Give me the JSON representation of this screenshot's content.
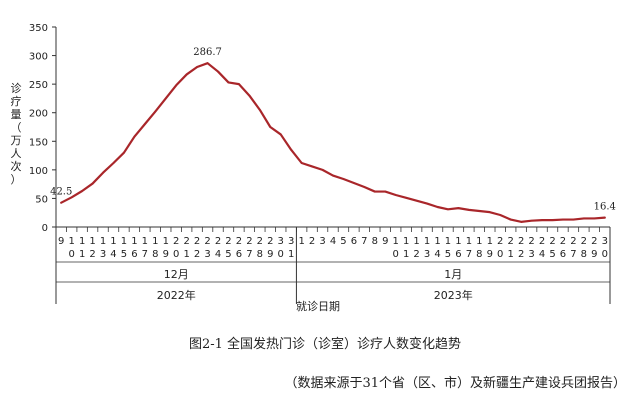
{
  "chart_data": {
    "type": "line",
    "ylabel": "诊疗量（万人次）",
    "xlabel": "就诊日期",
    "ylim": [
      0,
      350
    ],
    "yticks": [
      0,
      50,
      100,
      150,
      200,
      250,
      300,
      350
    ],
    "color": "#a9262a",
    "x": [
      "9",
      "10",
      "11",
      "12",
      "13",
      "14",
      "15",
      "16",
      "17",
      "18",
      "19",
      "20",
      "21",
      "22",
      "23",
      "24",
      "25",
      "26",
      "27",
      "28",
      "29",
      "30",
      "31",
      "1",
      "2",
      "3",
      "4",
      "5",
      "6",
      "7",
      "8",
      "9",
      "10",
      "11",
      "12",
      "13",
      "14",
      "15",
      "16",
      "17",
      "18",
      "19",
      "20",
      "21",
      "22",
      "23",
      "24",
      "25",
      "26",
      "27",
      "28",
      "29",
      "30"
    ],
    "x_tick_labels": [
      [
        "9",
        ""
      ],
      [
        "1",
        "0"
      ],
      [
        "1",
        "1"
      ],
      [
        "1",
        "2"
      ],
      [
        "1",
        "3"
      ],
      [
        "1",
        "4"
      ],
      [
        "1",
        "5"
      ],
      [
        "1",
        "6"
      ],
      [
        "1",
        "7"
      ],
      [
        "1",
        "8"
      ],
      [
        "1",
        "9"
      ],
      [
        "2",
        "0"
      ],
      [
        "2",
        "1"
      ],
      [
        "2",
        "2"
      ],
      [
        "2",
        "3"
      ],
      [
        "2",
        "4"
      ],
      [
        "2",
        "5"
      ],
      [
        "2",
        "6"
      ],
      [
        "2",
        "7"
      ],
      [
        "2",
        "8"
      ],
      [
        "2",
        "9"
      ],
      [
        "3",
        "0"
      ],
      [
        "3",
        "1"
      ],
      [
        "1",
        ""
      ],
      [
        "2",
        ""
      ],
      [
        "3",
        ""
      ],
      [
        "4",
        ""
      ],
      [
        "5",
        ""
      ],
      [
        "6",
        ""
      ],
      [
        "7",
        ""
      ],
      [
        "8",
        ""
      ],
      [
        "9",
        ""
      ],
      [
        "1",
        "0"
      ],
      [
        "1",
        "1"
      ],
      [
        "1",
        "2"
      ],
      [
        "1",
        "3"
      ],
      [
        "1",
        "4"
      ],
      [
        "1",
        "5"
      ],
      [
        "1",
        "6"
      ],
      [
        "1",
        "7"
      ],
      [
        "1",
        "8"
      ],
      [
        "1",
        "9"
      ],
      [
        "2",
        "0"
      ],
      [
        "2",
        "1"
      ],
      [
        "2",
        "2"
      ],
      [
        "2",
        "3"
      ],
      [
        "2",
        "4"
      ],
      [
        "2",
        "5"
      ],
      [
        "2",
        "6"
      ],
      [
        "2",
        "7"
      ],
      [
        "2",
        "8"
      ],
      [
        "2",
        "9"
      ],
      [
        "3",
        "0"
      ]
    ],
    "series": [
      {
        "values": [
          42.5,
          52,
          63,
          76,
          95,
          112,
          130,
          158,
          180,
          202,
          225,
          248,
          267,
          280,
          286.7,
          272,
          253,
          250,
          230,
          205,
          175,
          162,
          135,
          112,
          106,
          100,
          90,
          84,
          77,
          70,
          62,
          62,
          56,
          51,
          46,
          41,
          35,
          31,
          33,
          30,
          28,
          26,
          21,
          13,
          9,
          11,
          12,
          12,
          13,
          13,
          15,
          15,
          16.4
        ]
      }
    ],
    "annotations": [
      {
        "index": 0,
        "label": "42.5"
      },
      {
        "index": 14,
        "label": "286.7"
      },
      {
        "index": 52,
        "label": "16.4"
      }
    ],
    "months": [
      {
        "label": "12月",
        "year": "2022年"
      },
      {
        "label": "1月",
        "year": "2023年"
      }
    ]
  },
  "caption": "图2-1  全国发热门诊（诊室）诊疗人数变化趋势",
  "source": "（数据来源于31个省（区、市）及新疆生产建设兵团报告）"
}
